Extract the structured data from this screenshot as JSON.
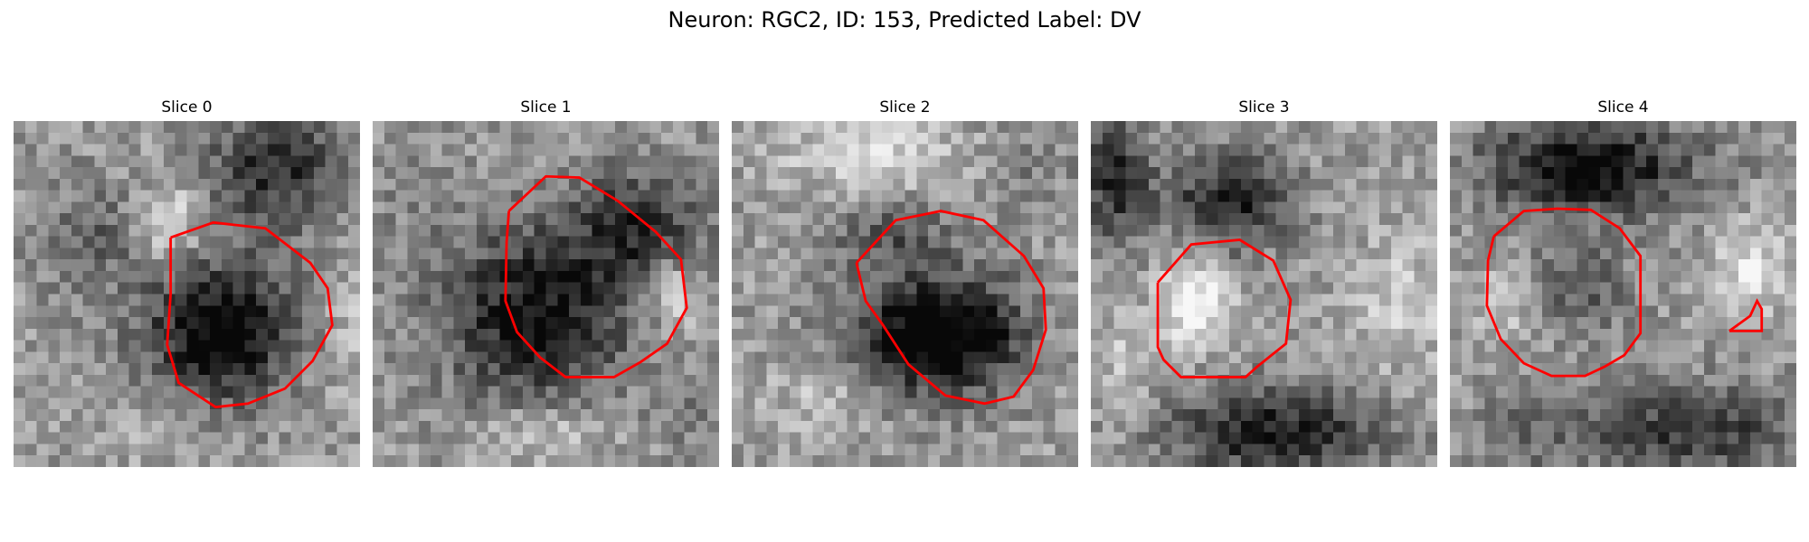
{
  "figure": {
    "title": "Neuron: RGC2, ID: 153, Predicted Label: DV"
  },
  "panels": [
    {
      "title": "Slice 0"
    },
    {
      "title": "Slice 1"
    },
    {
      "title": "Slice 2"
    },
    {
      "title": "Slice 3"
    },
    {
      "title": "Slice 4"
    }
  ],
  "colors": {
    "contour": "#ff0000",
    "background": "#ffffff"
  }
}
